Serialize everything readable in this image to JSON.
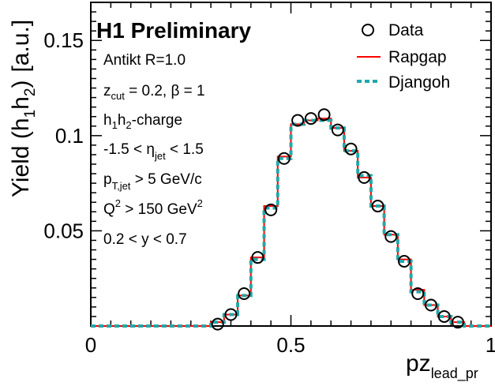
{
  "chart_data": {
    "type": "line",
    "title": "H1 Preliminary",
    "xlabel": "pz",
    "xlabel_sub": "lead_pr",
    "ylabel": "Yield (h",
    "ylabel_sub1": "1",
    "ylabel_mid": "h",
    "ylabel_sub2": "2",
    "ylabel_close": ")",
    "ylabel_unit": "[a.u.]",
    "xlim": [
      0,
      1
    ],
    "ylim": [
      0,
      0.17
    ],
    "xticks": [
      {
        "v": 0,
        "label": "0"
      },
      {
        "v": 0.5,
        "label": "0.5"
      },
      {
        "v": 1,
        "label": "1"
      }
    ],
    "yticks": [
      {
        "v": 0.05,
        "label": "0.05"
      },
      {
        "v": 0.1,
        "label": "0.1"
      },
      {
        "v": 0.15,
        "label": "0.15"
      }
    ],
    "grid": false,
    "legend_position": "top-right",
    "bin_edges": [
      0.0,
      0.3,
      0.333,
      0.367,
      0.4,
      0.433,
      0.467,
      0.5,
      0.533,
      0.567,
      0.6,
      0.633,
      0.667,
      0.7,
      0.733,
      0.767,
      0.8,
      0.833,
      0.867,
      0.9,
      0.933,
      1.0
    ],
    "series": [
      {
        "name": "Data",
        "style": "open-circle",
        "color": "#000000",
        "x": [
          0.317,
          0.35,
          0.383,
          0.417,
          0.45,
          0.483,
          0.517,
          0.55,
          0.583,
          0.617,
          0.65,
          0.683,
          0.717,
          0.75,
          0.783,
          0.817,
          0.85,
          0.883,
          0.917
        ],
        "values": [
          0.001,
          0.006,
          0.017,
          0.036,
          0.061,
          0.088,
          0.108,
          0.109,
          0.111,
          0.103,
          0.093,
          0.078,
          0.063,
          0.047,
          0.034,
          0.017,
          0.011,
          0.005,
          0.002
        ]
      },
      {
        "name": "Rapgap",
        "style": "solid-step",
        "color": "#ff0000",
        "values": [
          0.0,
          0.002,
          0.006,
          0.016,
          0.036,
          0.063,
          0.089,
          0.106,
          0.108,
          0.109,
          0.104,
          0.092,
          0.078,
          0.063,
          0.048,
          0.035,
          0.019,
          0.011,
          0.005,
          0.002,
          0.0
        ]
      },
      {
        "name": "Djangoh",
        "style": "dashed-step",
        "color": "#22a8a8",
        "values": [
          0.0,
          0.002,
          0.006,
          0.016,
          0.035,
          0.062,
          0.088,
          0.106,
          0.108,
          0.108,
          0.104,
          0.092,
          0.079,
          0.063,
          0.048,
          0.034,
          0.018,
          0.011,
          0.005,
          0.002,
          0.0
        ]
      }
    ],
    "annotations": [
      {
        "id": "antikt",
        "text": "Antikt R=1.0"
      },
      {
        "id": "zcut",
        "main": "z",
        "sub": "cut",
        "rest": " = 0.2, β = 1"
      },
      {
        "id": "charge",
        "p1": "h",
        "s1": "1",
        "p2": "h",
        "s2": "2",
        "rest": "-charge"
      },
      {
        "id": "eta",
        "pre": "-1.5 < η",
        "sub": "jet",
        "post": " < 1.5"
      },
      {
        "id": "pt",
        "main": "p",
        "sub": "T,jet",
        "post": " > 5 GeV/c"
      },
      {
        "id": "q2",
        "main": "Q",
        "sup": "2",
        "post": " >  150 GeV",
        "sup2": "2"
      },
      {
        "id": "y",
        "text": "0.2 < y < 0.7"
      }
    ]
  }
}
